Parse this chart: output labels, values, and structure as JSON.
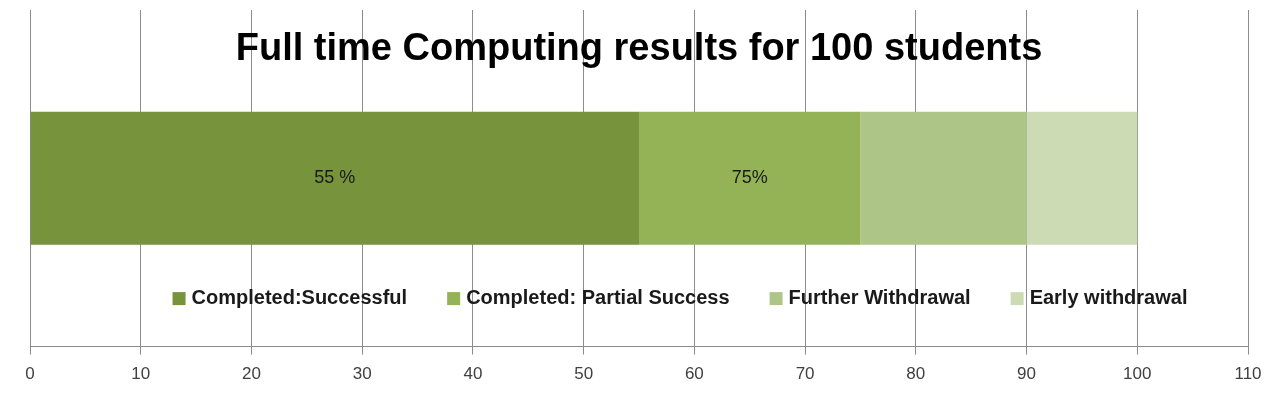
{
  "chart_data": {
    "type": "bar",
    "orientation": "horizontal",
    "stacked": true,
    "title": "Full time Computing results for 100 students",
    "categories": [
      null
    ],
    "series": [
      {
        "name": "Completed:Successful",
        "color": "#77933c",
        "values": [
          55
        ]
      },
      {
        "name": "Completed: Partial Success",
        "color": "#93b356",
        "values": [
          20
        ]
      },
      {
        "name": "Further Withdrawal",
        "color": "#adc687",
        "values": [
          15
        ]
      },
      {
        "name": "Early withdrawal",
        "color": "#cddbb5",
        "values": [
          10
        ]
      }
    ],
    "xlim": [
      0,
      110
    ],
    "xticks": [
      0,
      10,
      20,
      30,
      40,
      50,
      60,
      70,
      80,
      90,
      100,
      110
    ],
    "annotations": [
      "55 %",
      "75%"
    ],
    "grid": "x",
    "legend": "bottom"
  }
}
